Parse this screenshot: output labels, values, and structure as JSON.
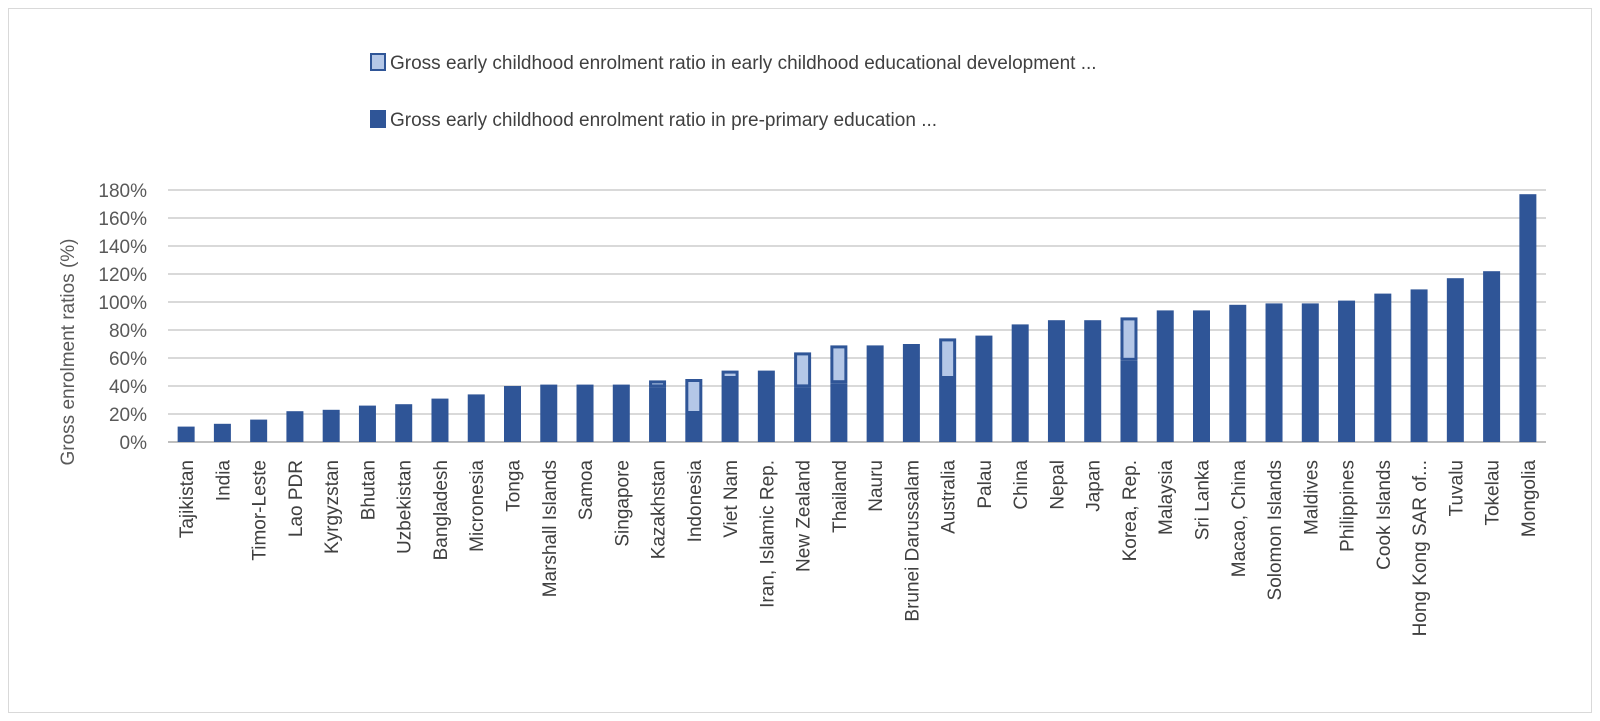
{
  "chart_data": {
    "type": "bar",
    "stacked": true,
    "title": "",
    "xlabel": "",
    "ylabel": "Gross enrolment ratios (%)",
    "ylim": [
      0,
      180
    ],
    "y_ticks": [
      "0%",
      "20%",
      "40%",
      "60%",
      "80%",
      "100%",
      "120%",
      "140%",
      "160%",
      "180%"
    ],
    "grid": true,
    "legend_position": "top",
    "categories": [
      "Tajikistan",
      "India",
      "Timor-Leste",
      "Lao PDR",
      "Kyrgyzstan",
      "Bhutan",
      "Uzbekistan",
      "Bangladesh",
      "Micronesia",
      "Tonga",
      "Marshall Islands",
      "Samoa",
      "Singapore",
      "Kazakhstan",
      "Indonesia",
      "Viet Nam",
      "Iran, Islamic Rep.",
      "New Zealand",
      "Thailand",
      "Nauru",
      "Brunei Darussalam",
      "Australia",
      "Palau",
      "China",
      "Nepal",
      "Japan",
      "Korea, Rep.",
      "Malaysia",
      "Sri Lanka",
      "Macao, China",
      "Solomon Islands",
      "Maldives",
      "Philippines",
      "Cook Islands",
      "Hong Kong SAR of...",
      "Tuvalu",
      "Tokelau",
      "Mongolia"
    ],
    "series": [
      {
        "name": "Gross early childhood enrolment ratio in pre-primary education ...",
        "color": "#2f5597",
        "values": [
          11,
          13,
          16,
          22,
          23,
          26,
          27,
          31,
          34,
          40,
          41,
          41,
          41,
          39,
          20,
          45,
          51,
          39,
          42,
          69,
          70,
          45,
          76,
          84,
          87,
          87,
          58,
          94,
          94,
          98,
          99,
          99,
          101,
          106,
          109,
          117,
          122,
          177
        ]
      },
      {
        "name": "Gross early childhood enrolment ratio in early childhood educational development ...",
        "color": "#b4c7e7",
        "values": [
          0,
          0,
          0,
          0,
          0,
          0,
          0,
          0,
          0,
          0,
          0,
          0,
          0,
          5,
          25,
          6,
          0,
          25,
          27,
          0,
          0,
          29,
          0,
          0,
          0,
          0,
          31,
          0,
          0,
          0,
          0,
          0,
          0,
          0,
          0,
          0,
          0,
          0
        ]
      }
    ]
  }
}
